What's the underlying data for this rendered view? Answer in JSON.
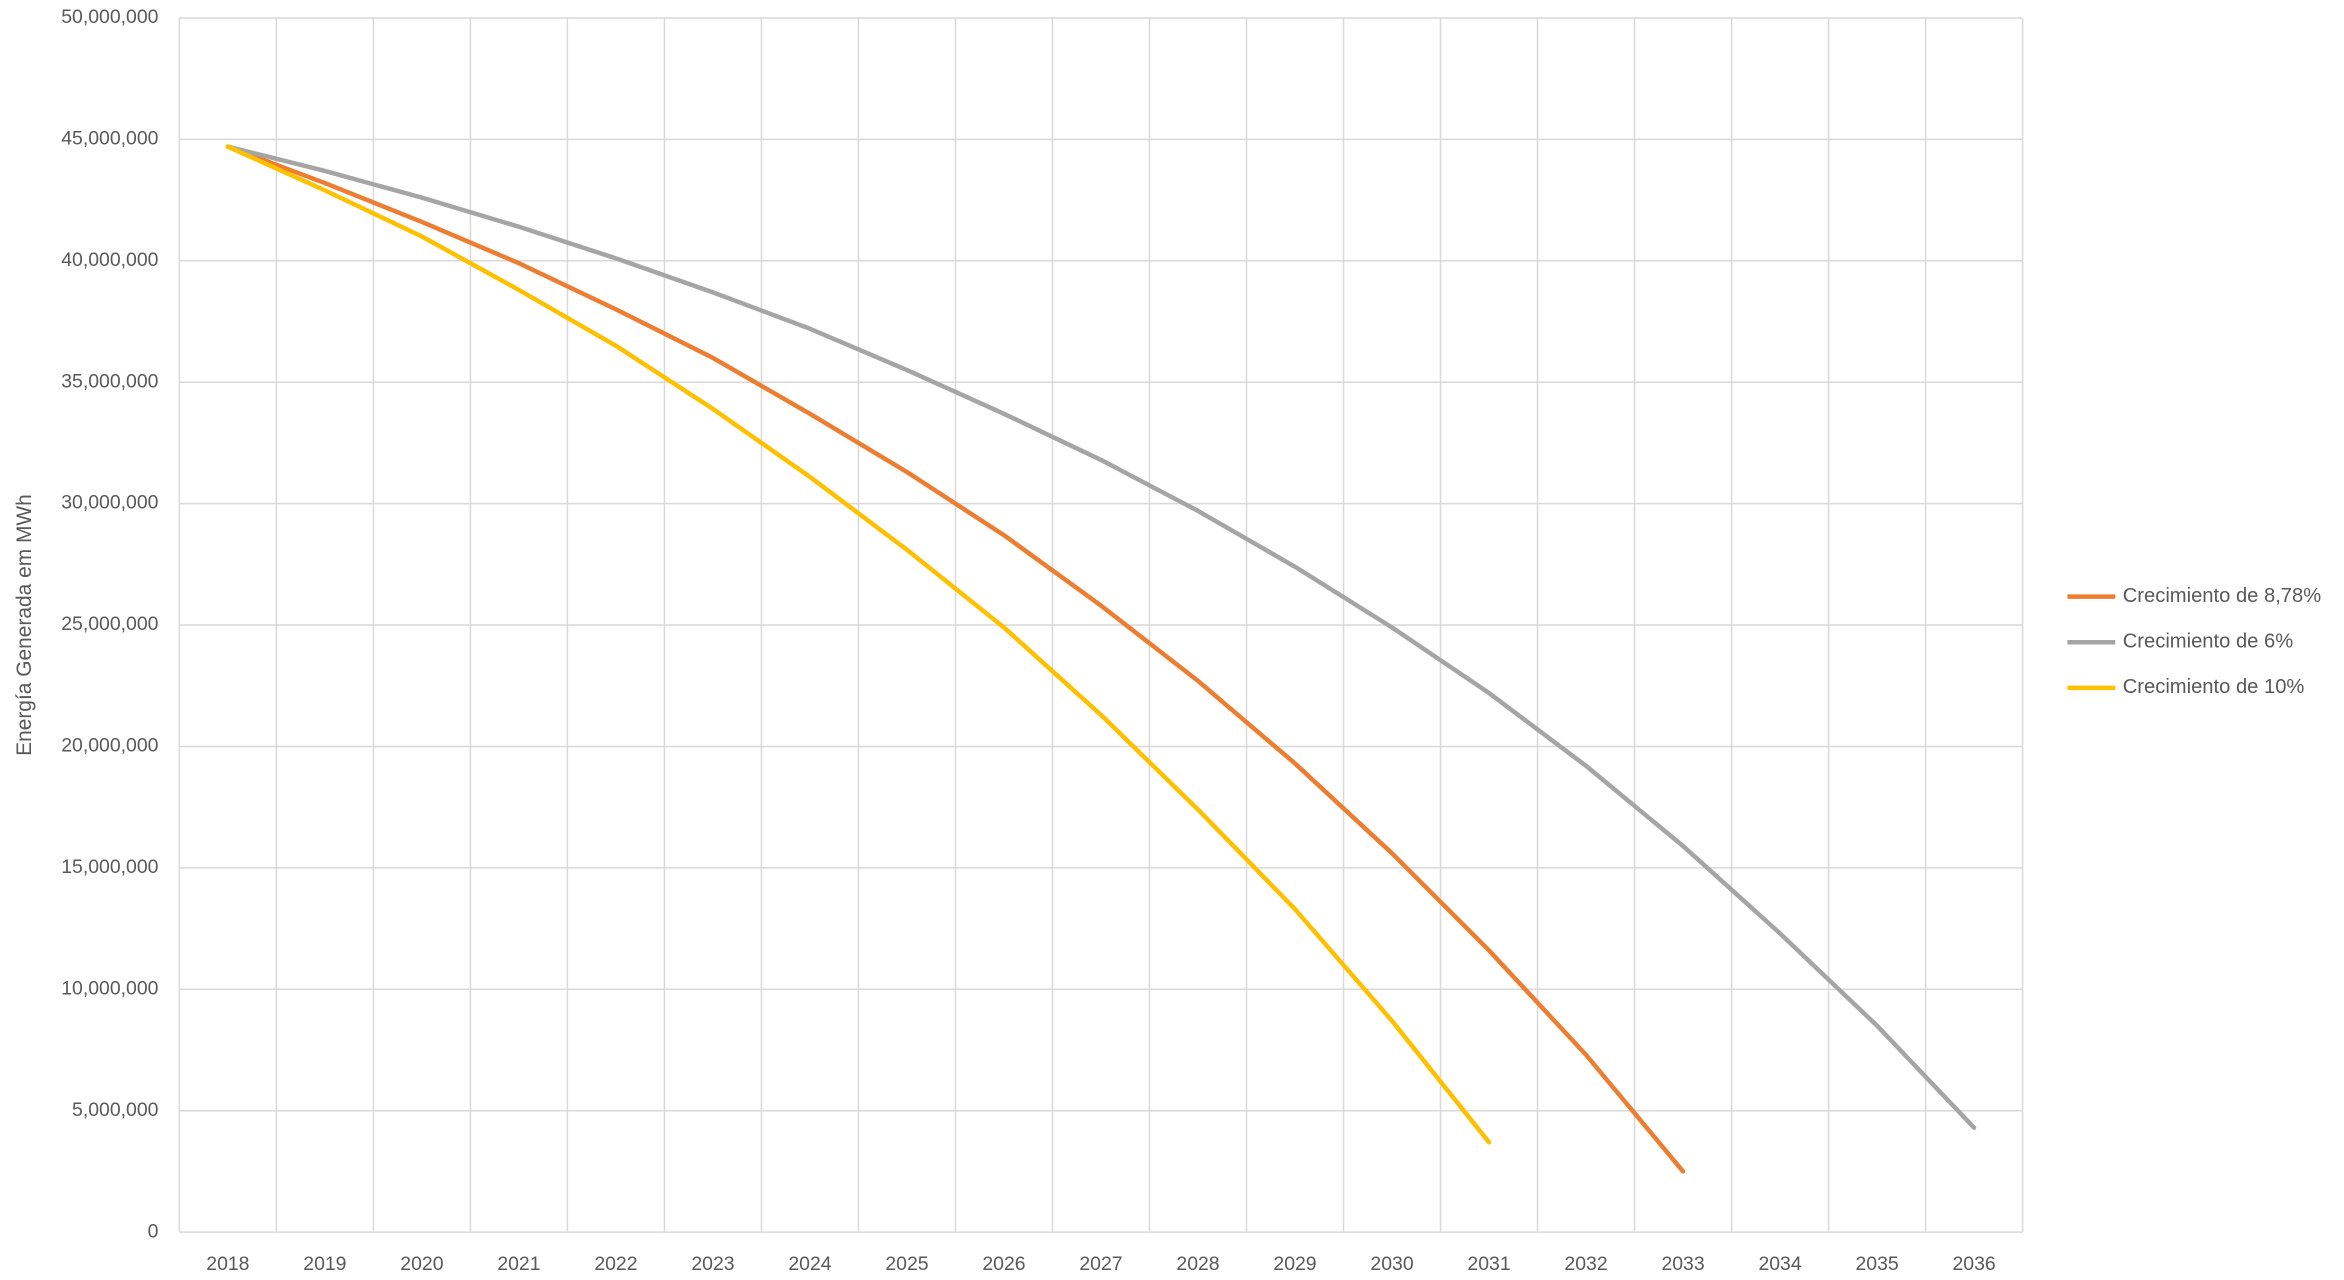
{
  "chart_data": {
    "type": "line",
    "y_label": "Energía Generada em MWh",
    "categories": [
      "2018",
      "2019",
      "2020",
      "2021",
      "2022",
      "2023",
      "2024",
      "2025",
      "2026",
      "2027",
      "2028",
      "2029",
      "2030",
      "2031",
      "2032",
      "2033",
      "2034",
      "2035",
      "2036"
    ],
    "series": [
      {
        "name": "Crecimiento de 8,78%",
        "color": "#ed7d31",
        "values": [
          44700000,
          43200000,
          41600000,
          39900000,
          38000000,
          36000000,
          33700000,
          31300000,
          28700000,
          25800000,
          22700000,
          19300000,
          15600000,
          11600000,
          7300000,
          2500000,
          null,
          null,
          null
        ]
      },
      {
        "name": "Crecimiento de 6%",
        "color": "#a5a5a5",
        "values": [
          44700000,
          43700000,
          42600000,
          41400000,
          40100000,
          38700000,
          37200000,
          35500000,
          33700000,
          31800000,
          29700000,
          27400000,
          24900000,
          22200000,
          19200000,
          15900000,
          12300000,
          8500000,
          4300000
        ]
      },
      {
        "name": "Crecimiento de 10%",
        "color": "#ffc000",
        "values": [
          44700000,
          42900000,
          41000000,
          38800000,
          36500000,
          33900000,
          31100000,
          28100000,
          24900000,
          21300000,
          17400000,
          13300000,
          8700000,
          3700000,
          null,
          null,
          null,
          null,
          null
        ]
      }
    ],
    "ylim": [
      0,
      50000000
    ],
    "yticks": [
      0,
      {
        "value": 5000000,
        "label": "5,000,000"
      },
      {
        "value": 10000000,
        "label": "10,000,000"
      },
      {
        "value": 15000000,
        "label": "15,000,000"
      },
      {
        "value": 20000000,
        "label": "20,000,000"
      },
      {
        "value": 25000000,
        "label": "25,000,000"
      },
      {
        "value": 30000000,
        "label": "30,000,000"
      },
      {
        "value": 35000000,
        "label": "35,000,000"
      },
      {
        "value": 40000000,
        "label": "40,000,000"
      },
      {
        "value": 45000000,
        "label": "45,000,000"
      },
      {
        "value": 50000000,
        "label": "50,000,000"
      }
    ],
    "grid": true,
    "legend": "right"
  }
}
